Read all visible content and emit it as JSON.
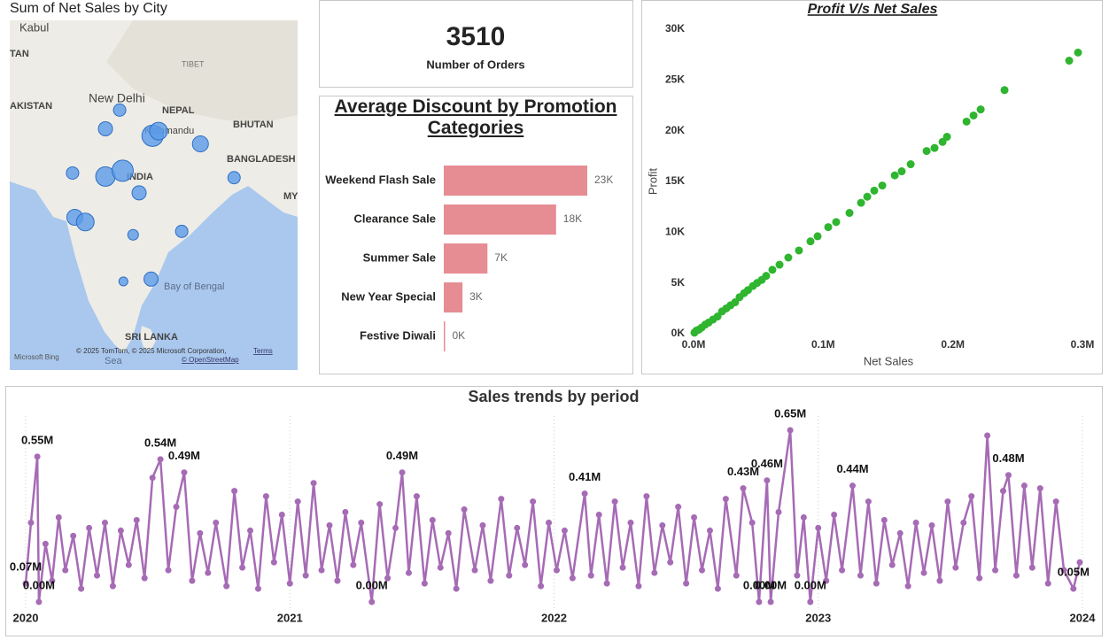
{
  "chart_data": [
    {
      "type": "map",
      "title": "Sum of Net Sales by City",
      "lon": [
        80.2,
        78.3,
        84.6,
        85.4,
        91.0,
        73.9,
        78.3,
        80.6,
        82.8,
        95.5,
        74.2,
        75.6,
        82.0,
        88.5,
        80.7,
        84.4
      ],
      "lat": [
        27.3,
        25.7,
        25.1,
        25.5,
        24.4,
        21.9,
        21.6,
        22.1,
        20.2,
        21.5,
        18.1,
        17.7,
        16.6,
        16.9,
        12.6,
        12.8
      ],
      "sizes": [
        0.68,
        0.89,
        2.0,
        1.39,
        1.13,
        0.68,
        1.68,
        2.0,
        0.89,
        0.68,
        1.13,
        1.39,
        0.5,
        0.68,
        0.35,
        0.89
      ],
      "xlim": [
        65.5,
        104
      ],
      "ylim": [
        5,
        35
      ],
      "color": "#5b9bea",
      "labels": [
        "Kabul",
        "TAN",
        "TIBET",
        "New Delhi",
        "NEPAL",
        "Kathmandu",
        "BHUTAN",
        "AKISTAN",
        "BANGLADESH",
        "INDIA",
        "MY",
        "Bay of Bengal",
        "SRI LANKA",
        "Sea",
        "Microsoft Bing",
        "© 2025 TomTom, © 2025 Microsoft Corporation,",
        "Terms",
        "© OpenStreetMap"
      ]
    },
    {
      "type": "card",
      "value": 3510,
      "label": "Number of Orders"
    },
    {
      "type": "bar",
      "title": "Average Discount by Promotion Categories",
      "categories": [
        "Weekend Flash Sale",
        "Clearance Sale",
        "Summer Sale",
        "New Year Special",
        "Festive Diwali"
      ],
      "values": [
        23000,
        18000,
        7000,
        3000,
        0
      ],
      "value_labels": [
        "23K",
        "18K",
        "7K",
        "3K",
        "0K"
      ],
      "color": "#e68c93"
    },
    {
      "type": "scatter",
      "title": "Profit V/s Net Sales",
      "x_label": "Net Sales",
      "y_label": "Profit",
      "x": [
        296600,
        289800,
        239900,
        221500,
        216000,
        210600,
        195500,
        192100,
        185900,
        179800,
        167500,
        160600,
        155200,
        145600,
        139400,
        134000,
        129200,
        120300,
        110000,
        103900,
        95700,
        90200,
        81300,
        73100,
        66300,
        60800,
        56000,
        52600,
        49000,
        45800,
        42000,
        39000,
        35500,
        32100,
        28500,
        25300,
        22000,
        18500,
        15000,
        11600,
        9000,
        6200,
        4000,
        2100,
        700
      ],
      "values": [
        27700,
        26900,
        24000,
        22100,
        21500,
        20900,
        19400,
        18900,
        18300,
        18000,
        16700,
        16000,
        15600,
        14600,
        14100,
        13500,
        12900,
        11900,
        11000,
        10500,
        9600,
        9100,
        8200,
        7500,
        6800,
        6300,
        5700,
        5300,
        5000,
        4700,
        4300,
        4000,
        3600,
        3100,
        2800,
        2500,
        2200,
        1700,
        1400,
        1100,
        900,
        600,
        400,
        300,
        100
      ],
      "xlim": [
        0,
        300000
      ],
      "ylim": [
        0,
        30000
      ],
      "xticks": [
        {
          "value": 0,
          "label": "0.0M"
        },
        {
          "value": 100000,
          "label": "0.1M"
        },
        {
          "value": 200000,
          "label": "0.2M"
        },
        {
          "value": 300000,
          "label": "0.3M"
        }
      ],
      "yticks": [
        {
          "value": 0,
          "label": "0K"
        },
        {
          "value": 5000,
          "label": "5K"
        },
        {
          "value": 10000,
          "label": "10K"
        },
        {
          "value": 15000,
          "label": "15K"
        },
        {
          "value": 20000,
          "label": "20K"
        },
        {
          "value": 25000,
          "label": "25K"
        },
        {
          "value": 30000,
          "label": "30K"
        }
      ],
      "color": "#2fb52f"
    },
    {
      "type": "line",
      "title": "Sales trends by period",
      "x": [
        2020.0,
        2020.02,
        2020.044,
        2020.05,
        2020.075,
        2020.1,
        2020.125,
        2020.15,
        2020.18,
        2020.21,
        2020.24,
        2020.27,
        2020.3,
        2020.33,
        2020.36,
        2020.39,
        2020.42,
        2020.45,
        2020.48,
        2020.51,
        2020.54,
        2020.57,
        2020.6,
        2020.63,
        2020.66,
        2020.69,
        2020.72,
        2020.76,
        2020.79,
        2020.82,
        2020.85,
        2020.88,
        2020.91,
        2020.94,
        2020.97,
        2021.0,
        2021.03,
        2021.06,
        2021.09,
        2021.12,
        2021.15,
        2021.18,
        2021.21,
        2021.24,
        2021.27,
        2021.31,
        2021.34,
        2021.37,
        2021.4,
        2021.425,
        2021.45,
        2021.48,
        2021.51,
        2021.54,
        2021.57,
        2021.6,
        2021.63,
        2021.66,
        2021.7,
        2021.73,
        2021.76,
        2021.8,
        2021.83,
        2021.86,
        2021.89,
        2021.92,
        2021.95,
        2021.98,
        2022.01,
        2022.04,
        2022.07,
        2022.116,
        2022.14,
        2022.17,
        2022.2,
        2022.23,
        2022.26,
        2022.29,
        2022.32,
        2022.35,
        2022.38,
        2022.41,
        2022.44,
        2022.47,
        2022.5,
        2022.53,
        2022.56,
        2022.59,
        2022.62,
        2022.65,
        2022.69,
        2022.716,
        2022.75,
        2022.776,
        2022.806,
        2022.82,
        2022.85,
        2022.894,
        2022.92,
        2022.945,
        2022.97,
        2023.0,
        2023.03,
        2023.06,
        2023.09,
        2023.13,
        2023.16,
        2023.19,
        2023.22,
        2023.25,
        2023.28,
        2023.31,
        2023.34,
        2023.37,
        2023.4,
        2023.43,
        2023.46,
        2023.49,
        2023.52,
        2023.55,
        2023.58,
        2023.61,
        2023.64,
        2023.67,
        2023.7,
        2023.72,
        2023.75,
        2023.78,
        2023.81,
        2023.84,
        2023.87,
        2023.9,
        2023.93,
        2023.966,
        2023.99
      ],
      "values": [
        0.07,
        0.3,
        0.55,
        0.0,
        0.22,
        0.08,
        0.32,
        0.12,
        0.25,
        0.05,
        0.28,
        0.1,
        0.3,
        0.06,
        0.27,
        0.14,
        0.31,
        0.09,
        0.47,
        0.54,
        0.12,
        0.36,
        0.49,
        0.08,
        0.26,
        0.11,
        0.3,
        0.06,
        0.42,
        0.13,
        0.27,
        0.05,
        0.4,
        0.15,
        0.33,
        0.07,
        0.38,
        0.1,
        0.45,
        0.12,
        0.29,
        0.08,
        0.34,
        0.14,
        0.3,
        0.0,
        0.37,
        0.09,
        0.28,
        0.49,
        0.11,
        0.4,
        0.07,
        0.31,
        0.13,
        0.26,
        0.05,
        0.35,
        0.12,
        0.29,
        0.08,
        0.39,
        0.1,
        0.28,
        0.14,
        0.38,
        0.06,
        0.3,
        0.12,
        0.27,
        0.09,
        0.41,
        0.1,
        0.33,
        0.07,
        0.38,
        0.13,
        0.3,
        0.06,
        0.4,
        0.11,
        0.29,
        0.15,
        0.36,
        0.07,
        0.32,
        0.12,
        0.27,
        0.05,
        0.39,
        0.1,
        0.43,
        0.3,
        0.0,
        0.46,
        0.0,
        0.34,
        0.65,
        0.1,
        0.32,
        0.0,
        0.28,
        0.08,
        0.33,
        0.12,
        0.44,
        0.1,
        0.38,
        0.07,
        0.31,
        0.14,
        0.26,
        0.06,
        0.3,
        0.11,
        0.29,
        0.08,
        0.38,
        0.13,
        0.3,
        0.4,
        0.09,
        0.63,
        0.12,
        0.42,
        0.48,
        0.1,
        0.44,
        0.13,
        0.43,
        0.07,
        0.38,
        0.12,
        0.05,
        0.15
      ],
      "value_labels": [
        "0.07M",
        null,
        "0.55M",
        "0.00M",
        null,
        null,
        null,
        null,
        null,
        null,
        null,
        null,
        null,
        null,
        null,
        null,
        null,
        null,
        null,
        "0.54M",
        null,
        null,
        "0.49M",
        null,
        null,
        null,
        null,
        null,
        null,
        null,
        null,
        null,
        null,
        null,
        null,
        null,
        null,
        null,
        null,
        null,
        null,
        null,
        null,
        null,
        null,
        "0.00M",
        null,
        null,
        null,
        "0.49M",
        null,
        null,
        null,
        null,
        null,
        null,
        null,
        null,
        null,
        null,
        null,
        null,
        null,
        null,
        null,
        null,
        null,
        null,
        null,
        null,
        null,
        "0.41M",
        null,
        null,
        null,
        null,
        null,
        null,
        null,
        null,
        null,
        null,
        null,
        null,
        null,
        null,
        null,
        null,
        null,
        null,
        null,
        "0.43M",
        null,
        "0.00M",
        "0.46M",
        "0.00M",
        null,
        "0.65M",
        null,
        null,
        "0.00M",
        null,
        null,
        null,
        null,
        "0.44M",
        null,
        null,
        null,
        null,
        null,
        null,
        null,
        null,
        null,
        null,
        null,
        null,
        null,
        null,
        null,
        null,
        null,
        null,
        null,
        "0.48M",
        null,
        null,
        null,
        null,
        null,
        null,
        null,
        "0.05M",
        null
      ],
      "xlim": [
        2020,
        2024
      ],
      "xticks": [
        2020,
        2021,
        2022,
        2023,
        2024
      ],
      "color": "#a66bb5",
      "grid": true
    }
  ]
}
